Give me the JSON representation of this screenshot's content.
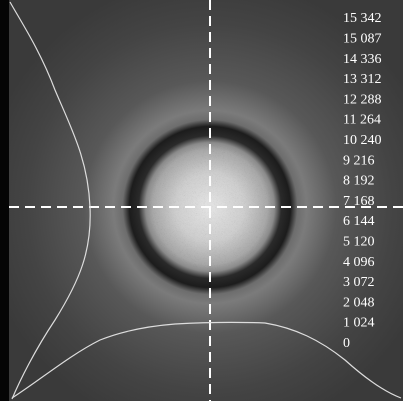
{
  "scale": {
    "labels": [
      "15 342",
      "15 087",
      "14 336",
      "13 312",
      "12 288",
      "11 264",
      "10 240",
      "9 216",
      "8 192",
      "7 168",
      "6 144",
      "5 120",
      "4 096",
      "3 072",
      "2 048",
      "1 024",
      "0"
    ]
  }
}
